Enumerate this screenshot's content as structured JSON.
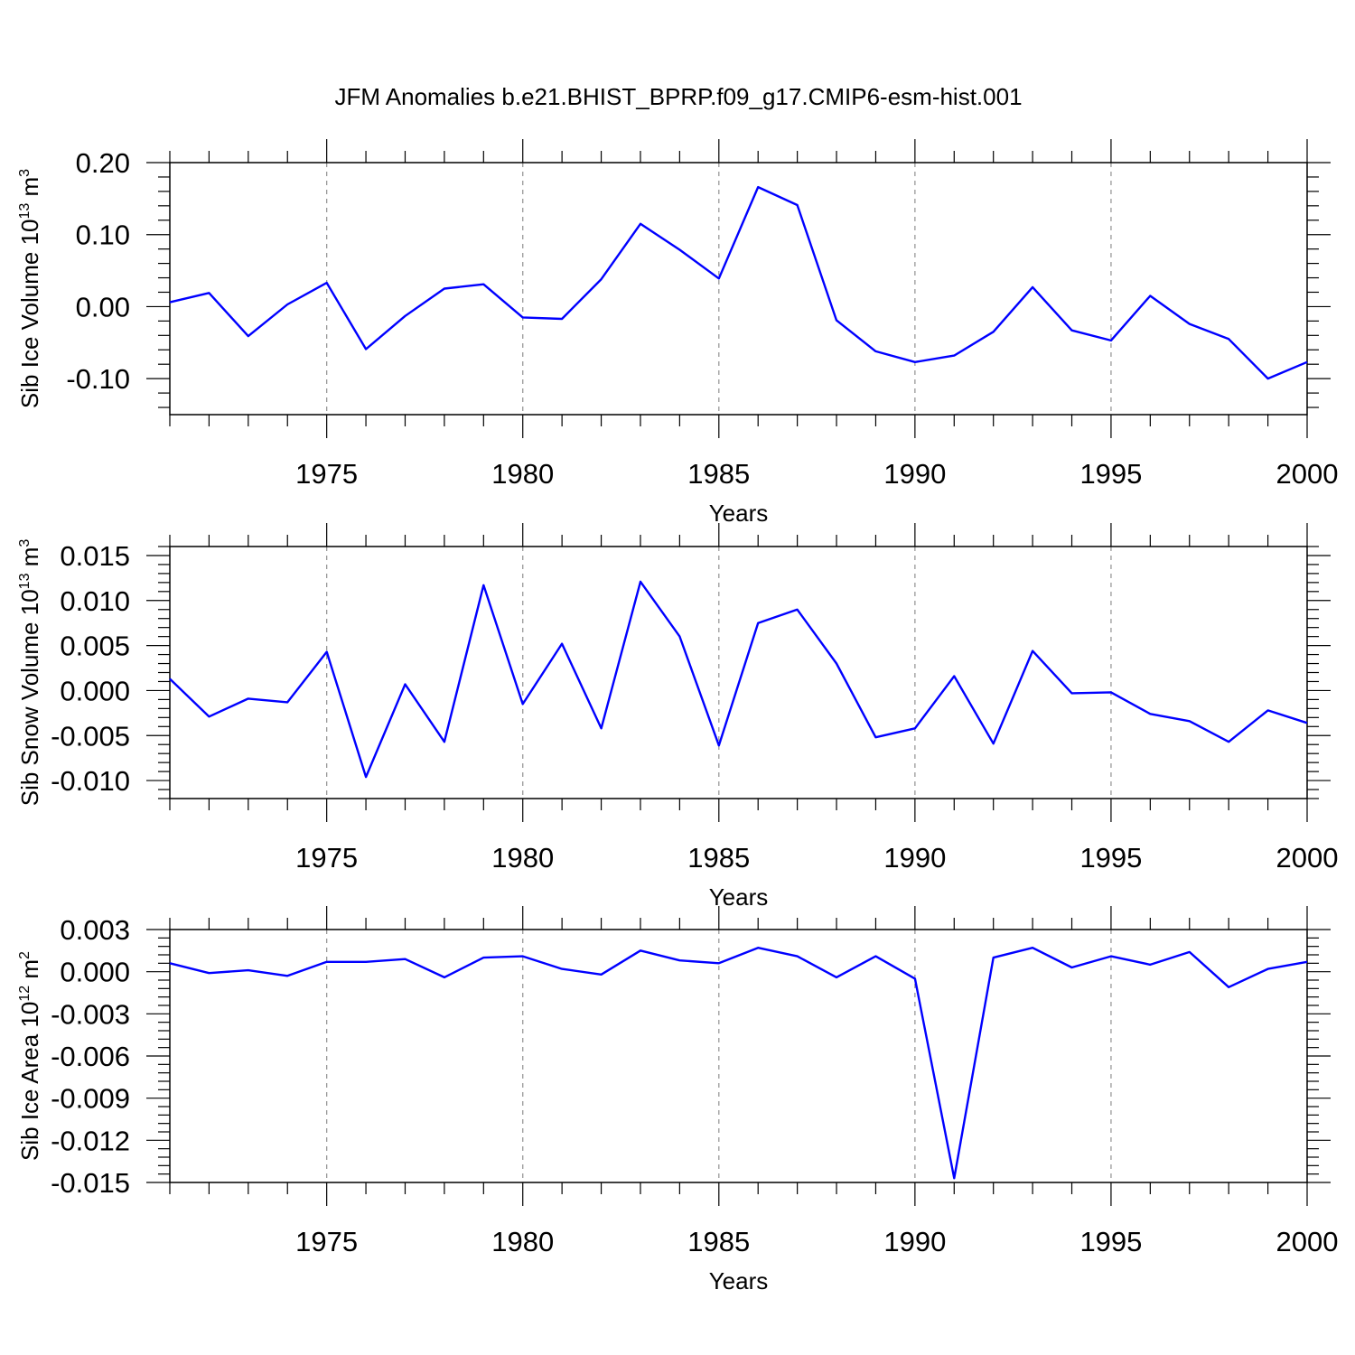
{
  "title": "JFM Anomalies b.e21.BHIST_BPRP.f09_g17.CMIP6-esm-hist.001",
  "line_color": "#0000ff",
  "chart_data": [
    {
      "type": "line",
      "xlabel": "Years",
      "ylabel": {
        "text": "Sib Ice Volume 10",
        "exp": "13",
        "unit": " m",
        "unit_exp": "3"
      },
      "xlim": [
        1971,
        2000
      ],
      "ylim": [
        -0.15,
        0.2
      ],
      "x_ticks": [
        1975,
        1980,
        1985,
        1990,
        1995,
        2000
      ],
      "y_ticks": [
        {
          "value": 0.2,
          "label": "0.20"
        },
        {
          "value": 0.1,
          "label": "0.10"
        },
        {
          "value": 0.0,
          "label": "0.00"
        },
        {
          "value": -0.1,
          "label": "-0.10"
        }
      ],
      "grid": "dashed vertical at major x ticks",
      "x": [
        1971,
        1972,
        1973,
        1974,
        1975,
        1976,
        1977,
        1978,
        1979,
        1980,
        1981,
        1982,
        1983,
        1984,
        1985,
        1986,
        1987,
        1988,
        1989,
        1990,
        1991,
        1992,
        1993,
        1994,
        1995,
        1996,
        1997,
        1998,
        1999,
        2000
      ],
      "values": [
        0.006,
        0.019,
        -0.041,
        0.003,
        0.033,
        -0.059,
        -0.013,
        0.025,
        0.031,
        -0.015,
        -0.017,
        0.038,
        0.115,
        0.079,
        0.039,
        0.166,
        0.141,
        -0.019,
        -0.062,
        -0.077,
        -0.068,
        -0.035,
        0.027,
        -0.033,
        -0.047,
        0.015,
        -0.024,
        -0.045,
        -0.1,
        -0.077
      ]
    },
    {
      "type": "line",
      "xlabel": "Years",
      "ylabel": {
        "text": "Sib Snow Volume 10",
        "exp": "13",
        "unit": " m",
        "unit_exp": "3"
      },
      "xlim": [
        1971,
        2000
      ],
      "ylim": [
        -0.012,
        0.016
      ],
      "x_ticks": [
        1975,
        1980,
        1985,
        1990,
        1995,
        2000
      ],
      "y_ticks": [
        {
          "value": 0.015,
          "label": "0.015"
        },
        {
          "value": 0.01,
          "label": "0.010"
        },
        {
          "value": 0.005,
          "label": "0.005"
        },
        {
          "value": 0.0,
          "label": "0.000"
        },
        {
          "value": -0.005,
          "label": "-0.005"
        },
        {
          "value": -0.01,
          "label": "-0.010"
        }
      ],
      "grid": "dashed vertical at major x ticks",
      "x": [
        1971,
        1972,
        1973,
        1974,
        1975,
        1976,
        1977,
        1978,
        1979,
        1980,
        1981,
        1982,
        1983,
        1984,
        1985,
        1986,
        1987,
        1988,
        1989,
        1990,
        1991,
        1992,
        1993,
        1994,
        1995,
        1996,
        1997,
        1998,
        1999,
        2000
      ],
      "values": [
        0.0013,
        -0.0029,
        -0.0009,
        -0.0013,
        0.0043,
        -0.0096,
        0.0007,
        -0.0057,
        0.0117,
        -0.0015,
        0.0052,
        -0.0042,
        0.0121,
        0.006,
        -0.0061,
        0.0075,
        0.009,
        0.003,
        -0.0052,
        -0.0042,
        0.0016,
        -0.0059,
        0.0044,
        -0.0003,
        -0.0002,
        -0.0026,
        -0.0034,
        -0.0057,
        -0.0022,
        -0.0036
      ]
    },
    {
      "type": "line",
      "xlabel": "Years",
      "ylabel": {
        "text": "Sib Ice Area 10",
        "exp": "12",
        "unit": " m",
        "unit_exp": "2"
      },
      "xlim": [
        1971,
        2000
      ],
      "ylim": [
        -0.015,
        0.003
      ],
      "x_ticks": [
        1975,
        1980,
        1985,
        1990,
        1995,
        2000
      ],
      "y_ticks": [
        {
          "value": 0.003,
          "label": "0.003"
        },
        {
          "value": 0.0,
          "label": "0.000"
        },
        {
          "value": -0.003,
          "label": "-0.003"
        },
        {
          "value": -0.006,
          "label": "-0.006"
        },
        {
          "value": -0.009,
          "label": "-0.009"
        },
        {
          "value": -0.012,
          "label": "-0.012"
        },
        {
          "value": -0.015,
          "label": "-0.015"
        }
      ],
      "grid": "dashed vertical at major x ticks",
      "x": [
        1971,
        1972,
        1973,
        1974,
        1975,
        1976,
        1977,
        1978,
        1979,
        1980,
        1981,
        1982,
        1983,
        1984,
        1985,
        1986,
        1987,
        1988,
        1989,
        1990,
        1991,
        1992,
        1993,
        1994,
        1995,
        1996,
        1997,
        1998,
        1999,
        2000
      ],
      "values": [
        0.0006,
        -0.0001,
        0.0001,
        -0.0003,
        0.0007,
        0.0007,
        0.0009,
        -0.0004,
        0.001,
        0.0011,
        0.0002,
        -0.0002,
        0.0015,
        0.0008,
        0.0006,
        0.0017,
        0.0011,
        -0.0004,
        0.0011,
        -0.0005,
        -0.0147,
        0.001,
        0.0017,
        0.0003,
        0.0011,
        0.0005,
        0.0014,
        -0.0011,
        0.0002,
        0.0007
      ]
    }
  ]
}
